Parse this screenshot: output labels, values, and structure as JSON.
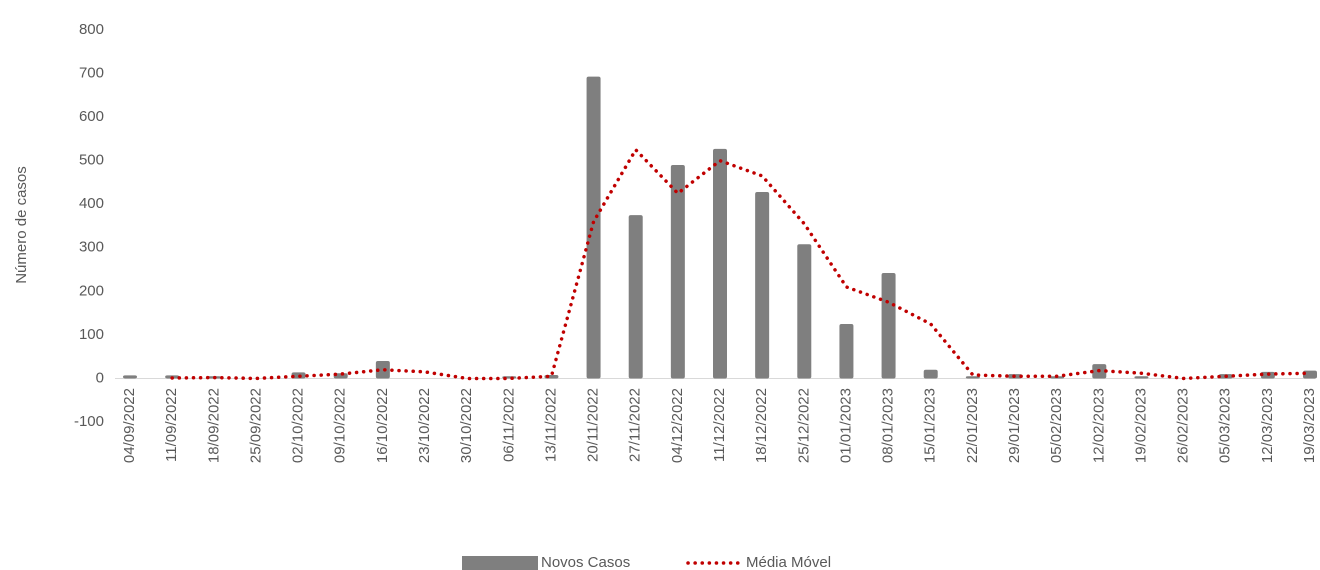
{
  "chart_data": {
    "type": "bar_line",
    "y_axis_label": "Número de casos",
    "categories": [
      "04/09/2022",
      "11/09/2022",
      "18/09/2022",
      "25/09/2022",
      "02/10/2022",
      "09/10/2022",
      "16/10/2022",
      "23/10/2022",
      "30/10/2022",
      "06/11/2022",
      "13/11/2022",
      "20/11/2022",
      "27/11/2022",
      "04/12/2022",
      "11/12/2022",
      "18/12/2022",
      "25/12/2022",
      "01/01/2023",
      "08/01/2023",
      "15/01/2023",
      "22/01/2023",
      "29/01/2023",
      "05/02/2023",
      "12/02/2023",
      "19/02/2023",
      "26/02/2023",
      "05/03/2023",
      "12/03/2023",
      "19/03/2023"
    ],
    "series": [
      {
        "name": "Novos Casos",
        "type": "bar",
        "color": "#7f7f7f",
        "values": [
          7,
          7,
          5,
          0,
          14,
          12,
          40,
          0,
          0,
          5,
          8,
          693,
          375,
          490,
          527,
          428,
          308,
          125,
          242,
          20,
          5,
          10,
          5,
          33,
          5,
          0,
          10,
          15,
          18
        ]
      },
      {
        "name": "Média Móvel",
        "type": "line",
        "color": "#c00000",
        "values": [
          null,
          1,
          2,
          0,
          5,
          10,
          20,
          15,
          0,
          0,
          5,
          360,
          525,
          425,
          500,
          465,
          355,
          210,
          175,
          125,
          8,
          5,
          5,
          18,
          12,
          0,
          5,
          10,
          12
        ]
      }
    ],
    "ylim": [
      -100,
      800
    ],
    "yticks": [
      -100,
      0,
      100,
      200,
      300,
      400,
      500,
      600,
      700,
      800
    ],
    "grid": false,
    "legend": "bottom"
  }
}
